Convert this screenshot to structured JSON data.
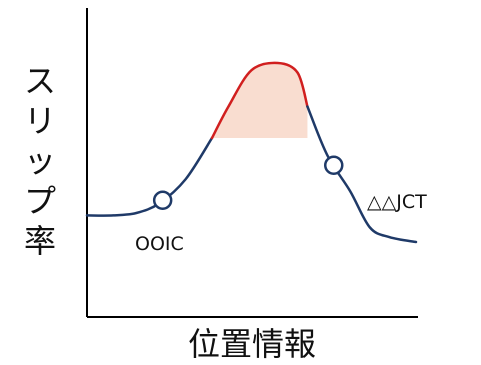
{
  "chart_data": {
    "type": "line",
    "title": "",
    "xlabel": "位置情報",
    "ylabel": "スリップ率",
    "xlim": [
      0,
      100
    ],
    "ylim": [
      0,
      100
    ],
    "grid": false,
    "ticks": false,
    "series": [
      {
        "x": [
          0,
          8,
          15,
          22,
          30,
          38,
          43,
          50,
          58,
          64,
          67,
          73,
          80,
          86,
          92,
          100
        ],
        "y": [
          30,
          30,
          31,
          35,
          45,
          62,
          75,
          90,
          93,
          89,
          75,
          55,
          40,
          25,
          21,
          19
        ]
      }
    ],
    "highlight": {
      "x_range": [
        38,
        67
      ],
      "fill_color": "#f9ddd0",
      "line_color": "#d11f1f"
    },
    "annotations": [
      {
        "label": "OOIC",
        "x": 23,
        "y": 38
      },
      {
        "label": "△△JCT",
        "x": 75,
        "y": 38
      }
    ],
    "colors": {
      "curve": "#1f3a68",
      "axis": "#000000"
    }
  }
}
